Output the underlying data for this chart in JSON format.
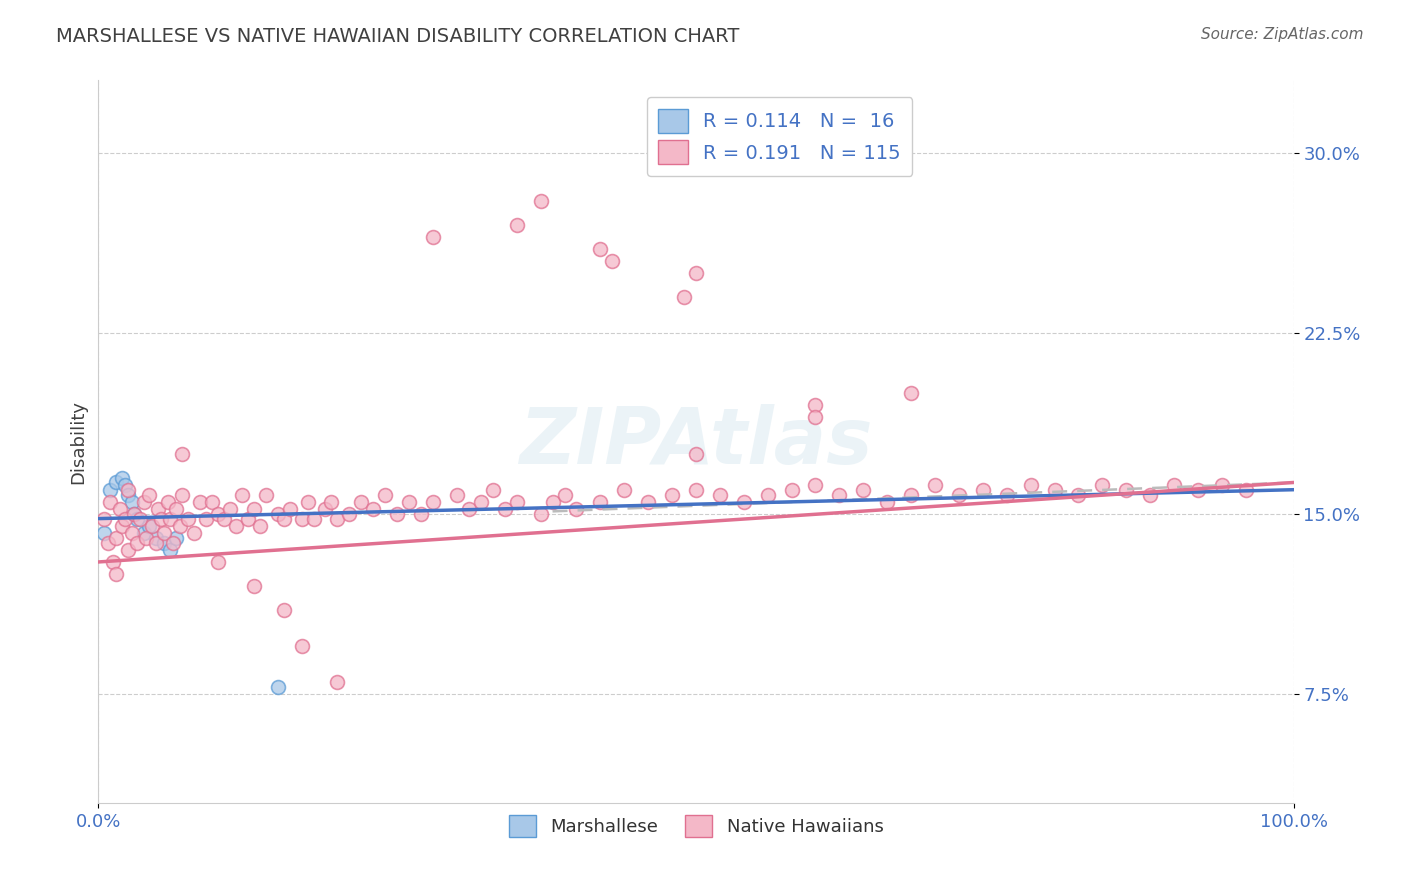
{
  "title": "MARSHALLESE VS NATIVE HAWAIIAN DISABILITY CORRELATION CHART",
  "source": "Source: ZipAtlas.com",
  "ylabel": "Disability",
  "xlim": [
    0.0,
    1.0
  ],
  "ylim": [
    0.03,
    0.33
  ],
  "yticks": [
    0.075,
    0.15,
    0.225,
    0.3
  ],
  "ytick_labels": [
    "7.5%",
    "15.0%",
    "22.5%",
    "30.0%"
  ],
  "xticks": [
    0.0,
    1.0
  ],
  "xtick_labels": [
    "0.0%",
    "100.0%"
  ],
  "blue_color": "#a8c8e8",
  "blue_edge_color": "#5b9bd5",
  "pink_color": "#f4b8c8",
  "pink_edge_color": "#e07090",
  "blue_line_color": "#4472c4",
  "pink_line_color": "#e07090",
  "dash_line_color": "#bbbbbb",
  "background_color": "#ffffff",
  "grid_color": "#c8c8c8",
  "axis_tick_color": "#4472c4",
  "title_color": "#404040",
  "source_color": "#666666",
  "ylabel_color": "#404040",
  "legend_text_color": "#4472c4",
  "legend_r_eq_color": "#333333",
  "watermark_color": "#d8e8f0",
  "watermark_alpha": 0.5,
  "blue_line_y0": 0.148,
  "blue_line_y1": 0.16,
  "pink_line_y0": 0.13,
  "pink_line_y1": 0.163,
  "dash_line_x0": 0.38,
  "dash_line_x1": 1.0,
  "dash_line_y0": 0.151,
  "dash_line_y1": 0.163,
  "marsh_x": [
    0.005,
    0.01,
    0.015,
    0.02,
    0.022,
    0.025,
    0.028,
    0.03,
    0.032,
    0.038,
    0.042,
    0.048,
    0.055,
    0.06,
    0.065,
    0.15
  ],
  "marsh_y": [
    0.142,
    0.16,
    0.163,
    0.165,
    0.162,
    0.158,
    0.155,
    0.15,
    0.148,
    0.142,
    0.145,
    0.14,
    0.138,
    0.135,
    0.14,
    0.078
  ],
  "nh_x": [
    0.005,
    0.008,
    0.01,
    0.012,
    0.015,
    0.015,
    0.018,
    0.02,
    0.022,
    0.025,
    0.025,
    0.028,
    0.03,
    0.032,
    0.035,
    0.038,
    0.04,
    0.042,
    0.045,
    0.048,
    0.05,
    0.052,
    0.055,
    0.058,
    0.06,
    0.062,
    0.065,
    0.068,
    0.07,
    0.075,
    0.08,
    0.085,
    0.09,
    0.095,
    0.1,
    0.105,
    0.11,
    0.115,
    0.12,
    0.125,
    0.13,
    0.135,
    0.14,
    0.15,
    0.155,
    0.16,
    0.17,
    0.175,
    0.18,
    0.19,
    0.195,
    0.2,
    0.21,
    0.22,
    0.23,
    0.24,
    0.25,
    0.26,
    0.27,
    0.28,
    0.3,
    0.31,
    0.32,
    0.33,
    0.34,
    0.35,
    0.37,
    0.38,
    0.39,
    0.4,
    0.42,
    0.44,
    0.46,
    0.48,
    0.5,
    0.52,
    0.54,
    0.56,
    0.58,
    0.6,
    0.62,
    0.64,
    0.66,
    0.68,
    0.7,
    0.72,
    0.74,
    0.76,
    0.78,
    0.8,
    0.82,
    0.84,
    0.86,
    0.88,
    0.9,
    0.92,
    0.94,
    0.96,
    0.35,
    0.42,
    0.49,
    0.37,
    0.5,
    0.68,
    0.5,
    0.6,
    0.43,
    0.28,
    0.6,
    0.07,
    0.1,
    0.13,
    0.155,
    0.17,
    0.2
  ],
  "nh_y": [
    0.148,
    0.138,
    0.155,
    0.13,
    0.14,
    0.125,
    0.152,
    0.145,
    0.148,
    0.135,
    0.16,
    0.142,
    0.15,
    0.138,
    0.148,
    0.155,
    0.14,
    0.158,
    0.145,
    0.138,
    0.152,
    0.148,
    0.142,
    0.155,
    0.148,
    0.138,
    0.152,
    0.145,
    0.158,
    0.148,
    0.142,
    0.155,
    0.148,
    0.155,
    0.15,
    0.148,
    0.152,
    0.145,
    0.158,
    0.148,
    0.152,
    0.145,
    0.158,
    0.15,
    0.148,
    0.152,
    0.148,
    0.155,
    0.148,
    0.152,
    0.155,
    0.148,
    0.15,
    0.155,
    0.152,
    0.158,
    0.15,
    0.155,
    0.15,
    0.155,
    0.158,
    0.152,
    0.155,
    0.16,
    0.152,
    0.155,
    0.15,
    0.155,
    0.158,
    0.152,
    0.155,
    0.16,
    0.155,
    0.158,
    0.16,
    0.158,
    0.155,
    0.158,
    0.16,
    0.162,
    0.158,
    0.16,
    0.155,
    0.158,
    0.162,
    0.158,
    0.16,
    0.158,
    0.162,
    0.16,
    0.158,
    0.162,
    0.16,
    0.158,
    0.162,
    0.16,
    0.162,
    0.16,
    0.27,
    0.26,
    0.24,
    0.28,
    0.25,
    0.2,
    0.175,
    0.195,
    0.255,
    0.265,
    0.19,
    0.175,
    0.13,
    0.12,
    0.11,
    0.095,
    0.08
  ]
}
